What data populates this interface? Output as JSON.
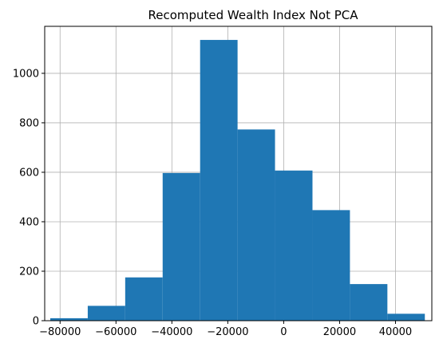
{
  "chart_data": {
    "type": "bar",
    "title": "Recomputed Wealth Index Not PCA",
    "xlabel": "",
    "ylabel": "",
    "xlim": [
      -85500,
      53000
    ],
    "ylim": [
      0,
      1190
    ],
    "grid": true,
    "bins": [
      {
        "x0": -83500,
        "x1": -70100,
        "value": 10
      },
      {
        "x0": -70100,
        "x1": -56700,
        "value": 60
      },
      {
        "x0": -56700,
        "x1": -43300,
        "value": 175
      },
      {
        "x0": -43300,
        "x1": -29900,
        "value": 597
      },
      {
        "x0": -29900,
        "x1": -16500,
        "value": 1135
      },
      {
        "x0": -16500,
        "x1": -3100,
        "value": 773
      },
      {
        "x0": -3100,
        "x1": 10300,
        "value": 607
      },
      {
        "x0": 10300,
        "x1": 23700,
        "value": 447
      },
      {
        "x0": 23700,
        "x1": 37100,
        "value": 148
      },
      {
        "x0": 37100,
        "x1": 50500,
        "value": 28
      }
    ],
    "x_ticks": [
      {
        "value": -80000,
        "label": "−80000"
      },
      {
        "value": -60000,
        "label": "−60000"
      },
      {
        "value": -40000,
        "label": "−40000"
      },
      {
        "value": -20000,
        "label": "−20000"
      },
      {
        "value": 0,
        "label": "0"
      },
      {
        "value": 20000,
        "label": "20000"
      },
      {
        "value": 40000,
        "label": "40000"
      }
    ],
    "y_ticks": [
      {
        "value": 0,
        "label": "0"
      },
      {
        "value": 200,
        "label": "200"
      },
      {
        "value": 400,
        "label": "400"
      },
      {
        "value": 600,
        "label": "600"
      },
      {
        "value": 800,
        "label": "800"
      },
      {
        "value": 1000,
        "label": "1000"
      }
    ],
    "colors": {
      "bar": "#1f77b4",
      "grid": "#b0b0b0",
      "axis": "#000000"
    }
  }
}
